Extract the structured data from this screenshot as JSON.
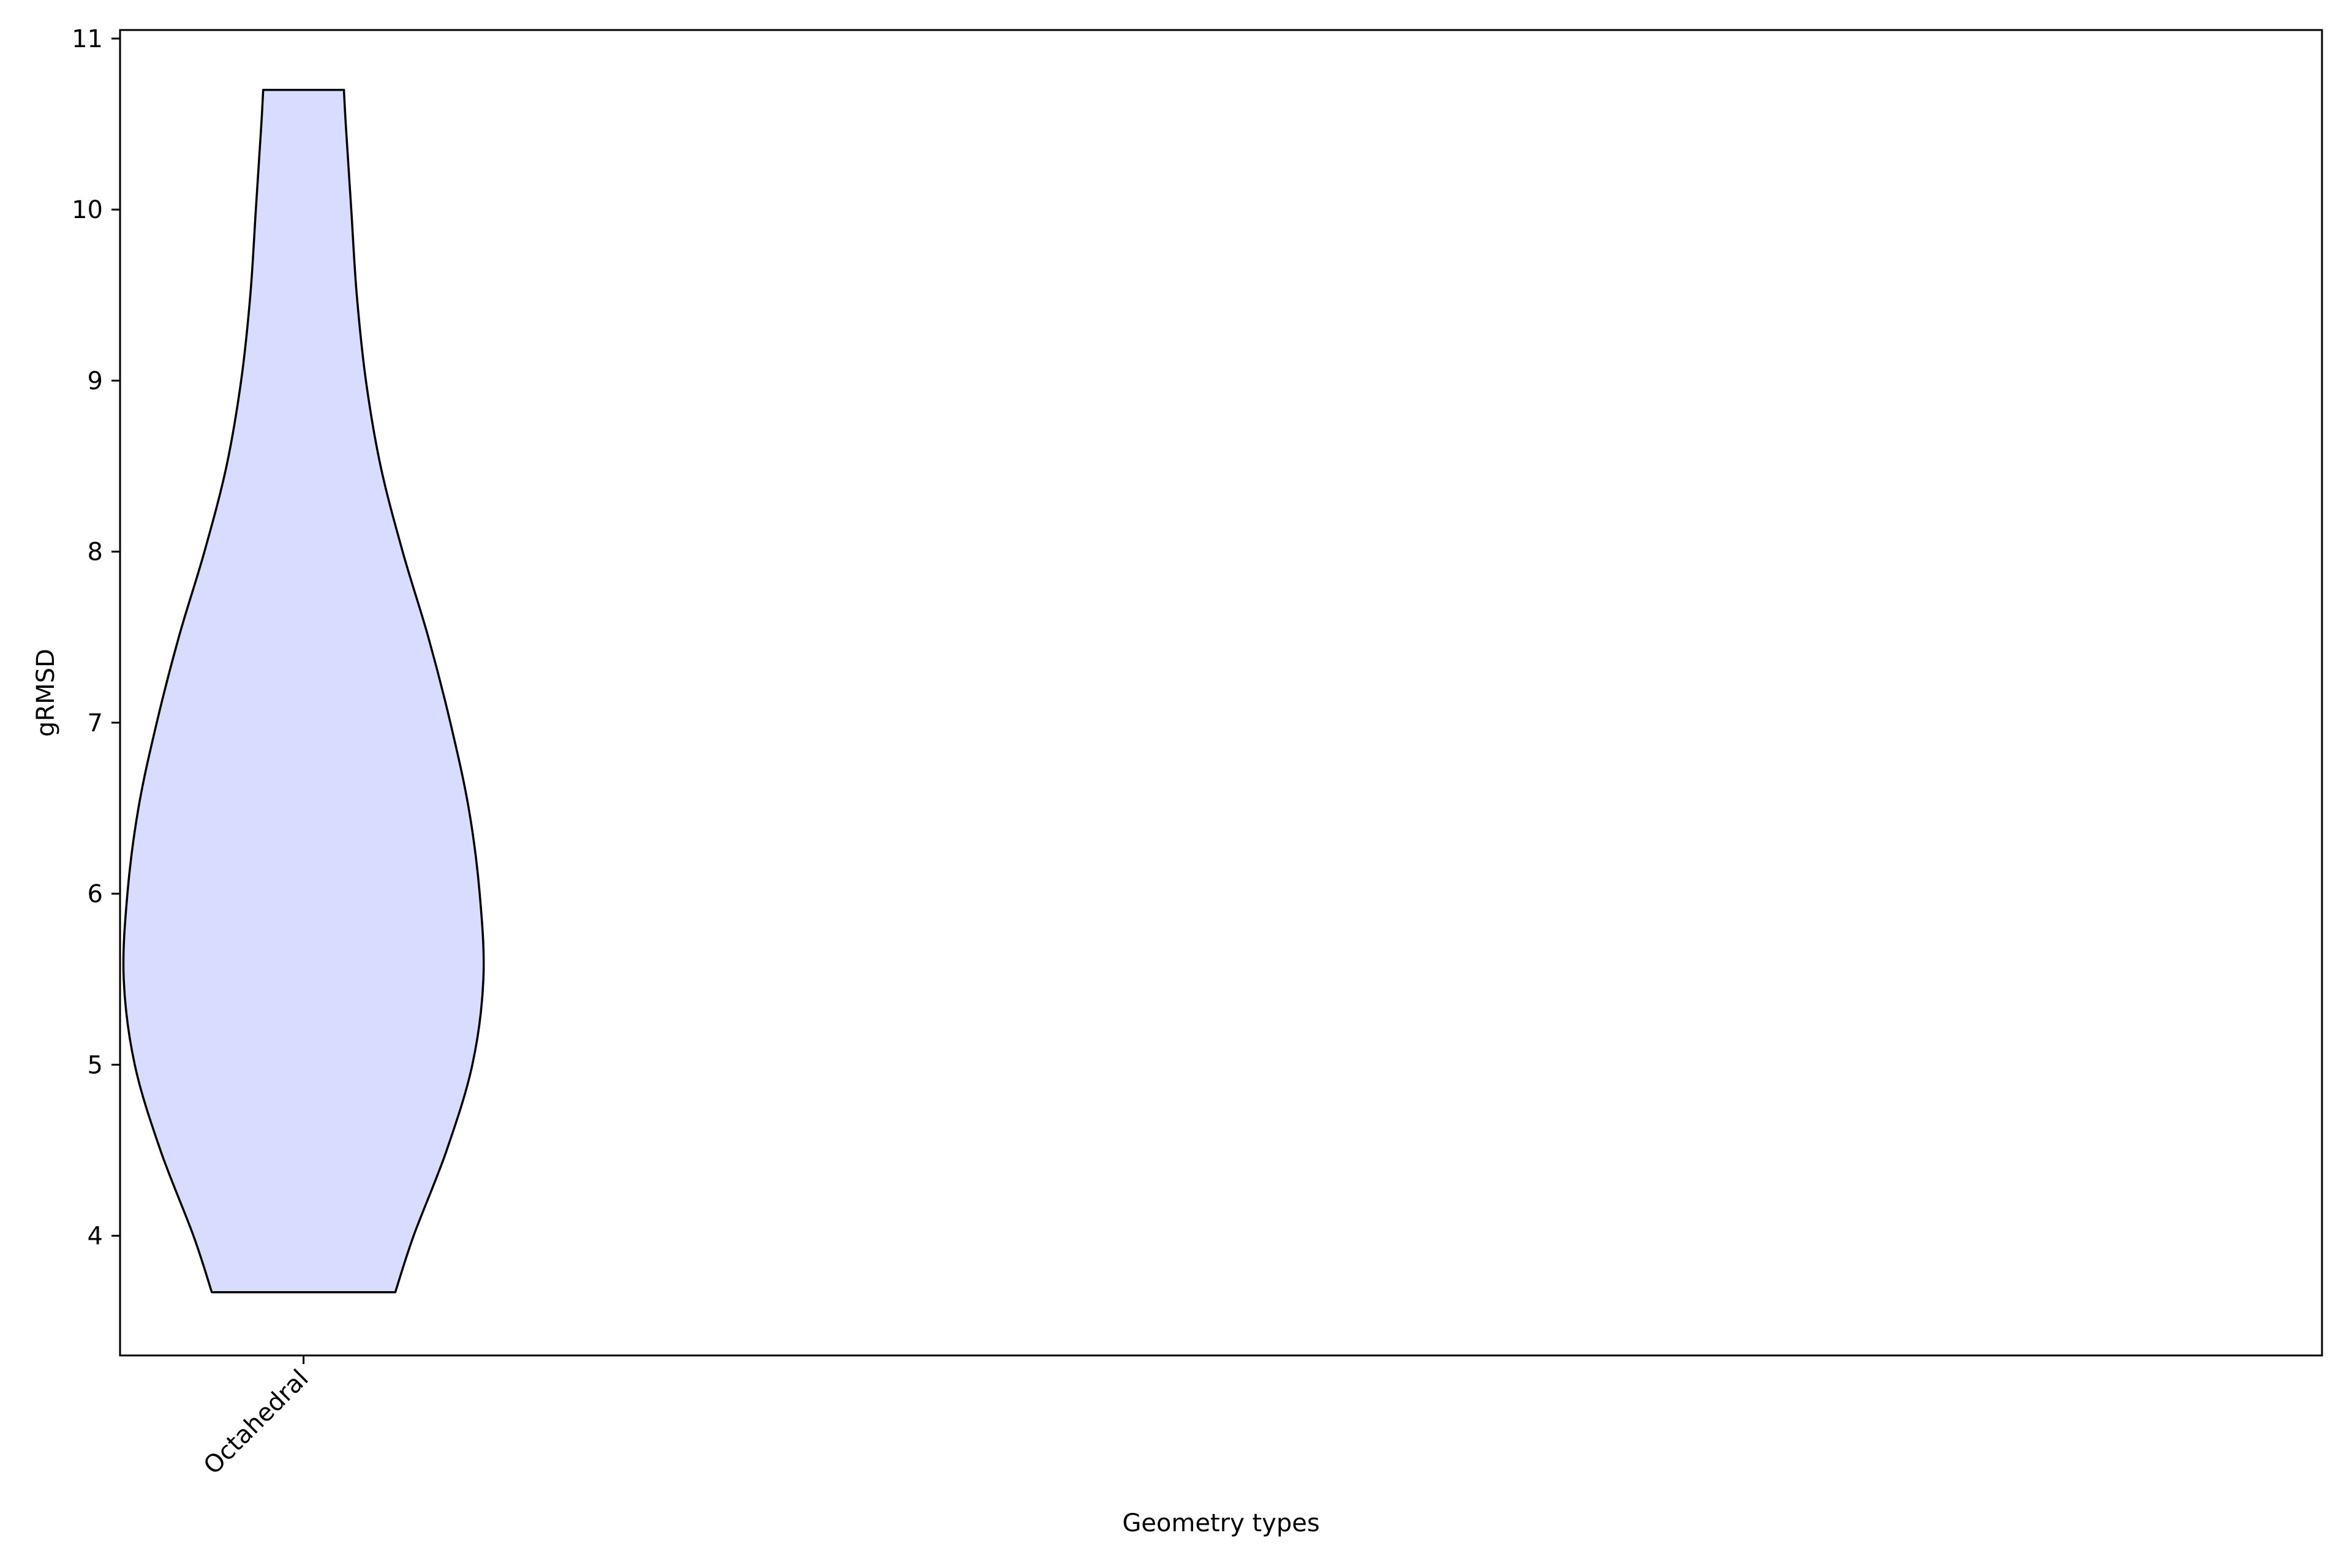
{
  "chart_data": {
    "type": "violin",
    "title": "",
    "xlabel": "Geometry types",
    "ylabel": "gRMSD",
    "categories": [
      "Octahedral"
    ],
    "ylim": [
      3.3,
      11.05
    ],
    "yticks": [
      4,
      5,
      6,
      7,
      8,
      9,
      10,
      11
    ],
    "grid": false,
    "legend": "none",
    "series": [
      {
        "category": "Octahedral",
        "min": 3.67,
        "max": 10.7,
        "fill_color": "#d8dcfe",
        "edge_color": "#000000",
        "density_profile": [
          {
            "y": 3.67,
            "w": 0.25
          },
          {
            "y": 4.0,
            "w": 0.3
          },
          {
            "y": 4.5,
            "w": 0.39
          },
          {
            "y": 5.0,
            "w": 0.46
          },
          {
            "y": 5.5,
            "w": 0.49
          },
          {
            "y": 6.0,
            "w": 0.48
          },
          {
            "y": 6.5,
            "w": 0.45
          },
          {
            "y": 7.0,
            "w": 0.4
          },
          {
            "y": 7.5,
            "w": 0.34
          },
          {
            "y": 8.0,
            "w": 0.27
          },
          {
            "y": 8.5,
            "w": 0.21
          },
          {
            "y": 9.0,
            "w": 0.17
          },
          {
            "y": 9.5,
            "w": 0.145
          },
          {
            "y": 10.0,
            "w": 0.13
          },
          {
            "y": 10.5,
            "w": 0.115
          },
          {
            "y": 10.7,
            "w": 0.11
          }
        ]
      }
    ]
  }
}
